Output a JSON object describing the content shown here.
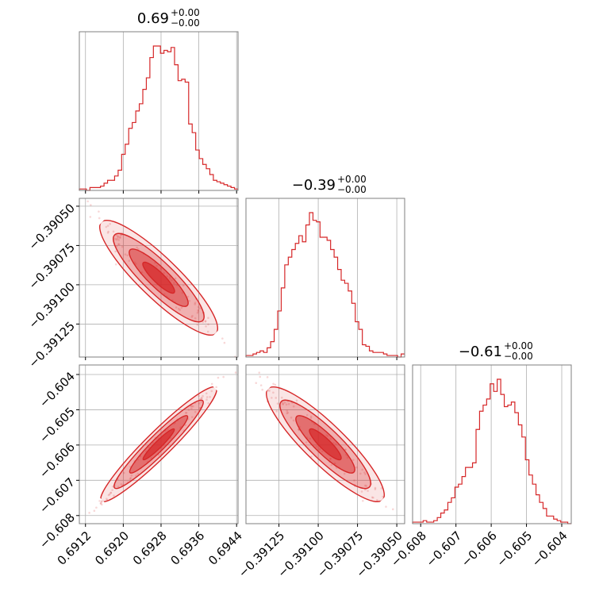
{
  "chart_data": {
    "type": "corner",
    "color": "#d62728",
    "grid": true,
    "titles": [
      {
        "value": "0.69",
        "plus": "+0.00",
        "minus": "−0.00"
      },
      {
        "value": "−0.39",
        "plus": "+0.00",
        "minus": "−0.00"
      },
      {
        "value": "−0.61",
        "plus": "+0.00",
        "minus": "−0.00"
      }
    ],
    "params": [
      {
        "range": [
          0.69107,
          0.69443
        ],
        "ticks": [
          0.6912,
          0.692,
          0.6928,
          0.6936,
          0.6944
        ],
        "tick_labels": [
          "0.6912",
          "0.6920",
          "0.6928",
          "0.6936",
          "0.6944"
        ]
      },
      {
        "range": [
          -0.39146,
          -0.39045
        ],
        "ticks": [
          -0.39125,
          -0.391,
          -0.39075,
          -0.3905
        ],
        "tick_labels": [
          "−0.39125",
          "−0.39100",
          "−0.39075",
          "−0.39050"
        ]
      },
      {
        "range": [
          -0.60823,
          -0.60373
        ],
        "ticks": [
          -0.608,
          -0.607,
          -0.606,
          -0.605,
          -0.604
        ],
        "tick_labels": [
          "−0.608",
          "−0.607",
          "−0.606",
          "−0.605",
          "−0.604"
        ]
      }
    ],
    "histograms": [
      [
        1,
        1,
        0,
        2,
        2,
        2,
        3,
        5,
        7,
        7,
        10,
        14,
        25,
        32,
        43,
        47,
        55,
        60,
        70,
        78,
        92,
        100,
        100,
        95,
        97,
        96,
        99,
        87,
        76,
        77,
        75,
        46,
        40,
        28,
        22,
        18,
        15,
        11,
        7,
        6,
        5,
        4,
        3,
        2,
        1
      ],
      [
        1,
        1,
        2,
        3,
        4,
        3,
        6,
        10,
        18,
        30,
        45,
        60,
        65,
        70,
        74,
        79,
        75,
        86,
        94,
        89,
        88,
        78,
        78,
        76,
        70,
        65,
        57,
        50,
        48,
        43,
        35,
        23,
        18,
        8,
        7,
        4,
        3,
        3,
        3,
        2,
        1,
        1,
        1,
        0,
        2
      ],
      [
        1,
        1,
        1,
        2,
        1,
        1,
        2,
        4,
        7,
        9,
        14,
        17,
        24,
        26,
        31,
        37,
        37,
        40,
        62,
        74,
        78,
        82,
        92,
        87,
        95,
        85,
        77,
        78,
        80,
        73,
        65,
        57,
        42,
        32,
        26,
        19,
        14,
        10,
        5,
        5,
        3,
        2,
        1,
        1,
        0
      ]
    ],
    "correlations": {
      "0-1": -0.97,
      "0-2": 0.99,
      "1-2": -0.97
    }
  }
}
